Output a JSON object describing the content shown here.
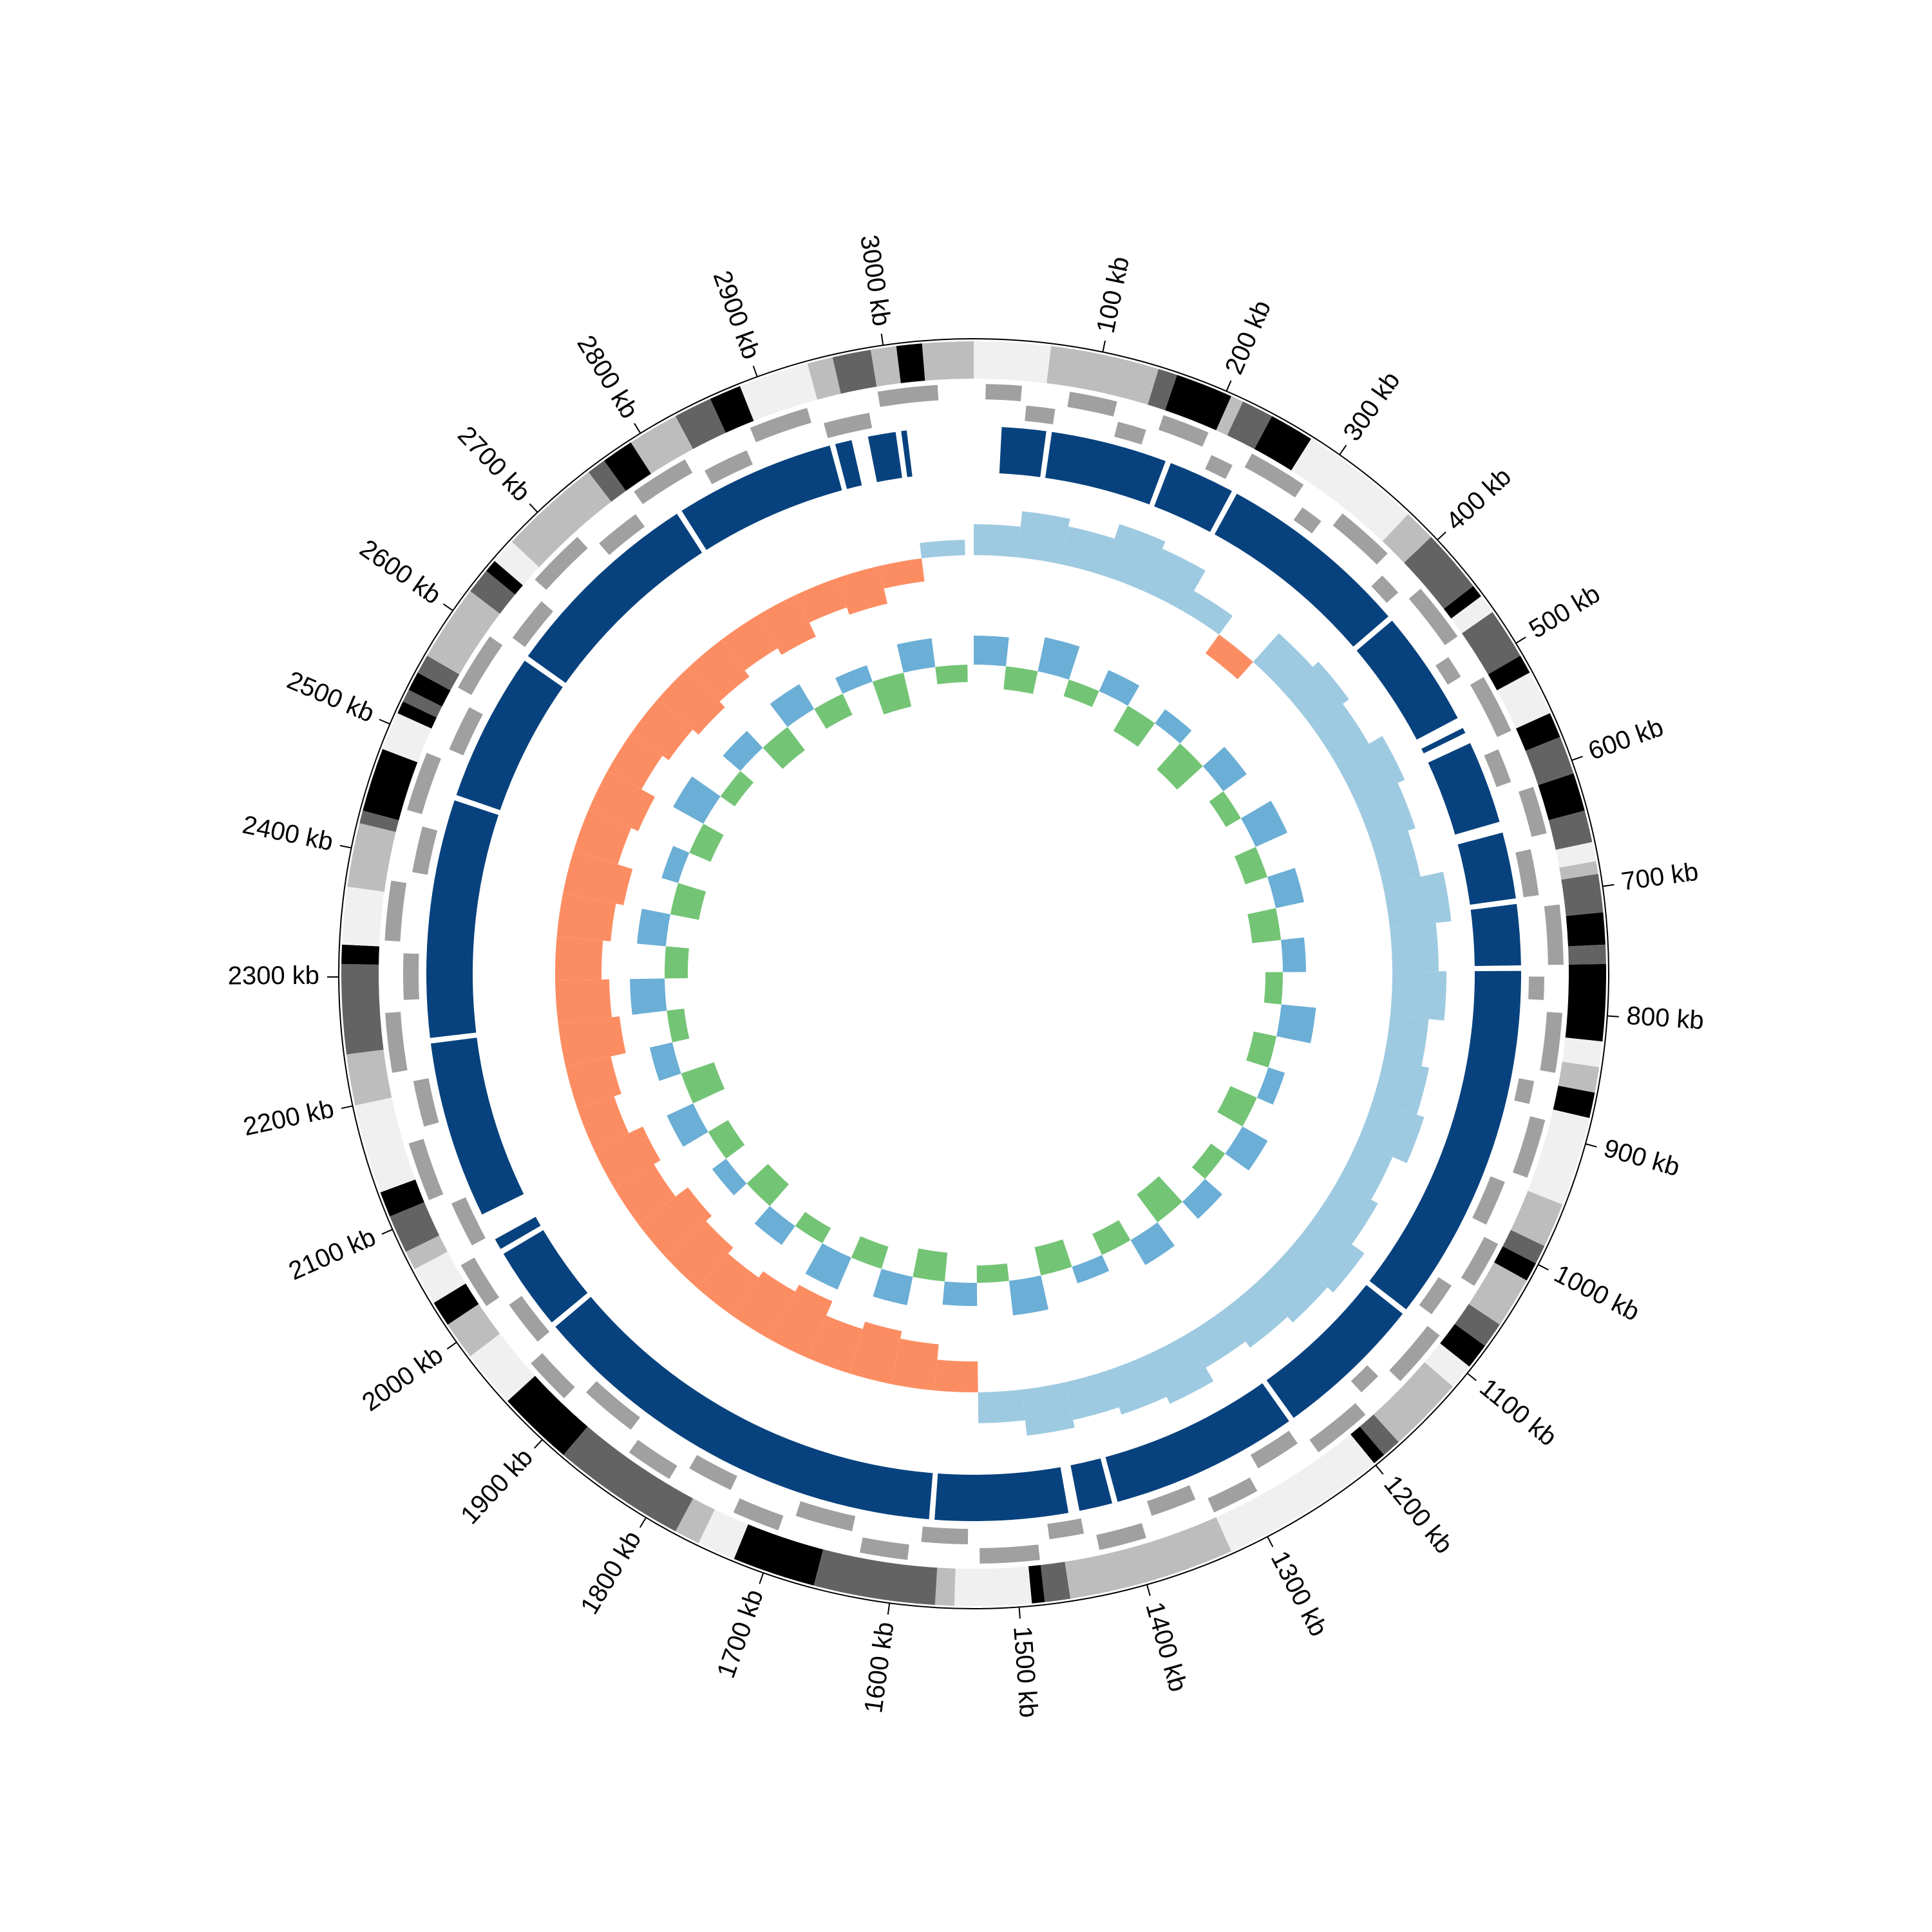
{
  "chart_data": {
    "type": "circos",
    "xlim": [
      0,
      3070
    ],
    "xticks": [
      {
        "value": 100,
        "label": "100 kb"
      },
      {
        "value": 200,
        "label": "200 kb"
      },
      {
        "value": 300,
        "label": "300 kb"
      },
      {
        "value": 400,
        "label": "400 kb"
      },
      {
        "value": 500,
        "label": "500 kb"
      },
      {
        "value": 600,
        "label": "600 kb"
      },
      {
        "value": 700,
        "label": "700 kb"
      },
      {
        "value": 800,
        "label": "800 kb"
      },
      {
        "value": 900,
        "label": "900 kb"
      },
      {
        "value": 1000,
        "label": "1000 kb"
      },
      {
        "value": 1100,
        "label": "1100 kb"
      },
      {
        "value": 1200,
        "label": "1200 kb"
      },
      {
        "value": 1300,
        "label": "1300 kb"
      },
      {
        "value": 1400,
        "label": "1400 kb"
      },
      {
        "value": 1500,
        "label": "1500 kb"
      },
      {
        "value": 1600,
        "label": "1600 kb"
      },
      {
        "value": 1700,
        "label": "1700 kb"
      },
      {
        "value": 1800,
        "label": "1800 kb"
      },
      {
        "value": 1900,
        "label": "1900 kb"
      },
      {
        "value": 2000,
        "label": "2000 kb"
      },
      {
        "value": 2100,
        "label": "2100 kb"
      },
      {
        "value": 2200,
        "label": "2200 kb"
      },
      {
        "value": 2300,
        "label": "2300 kb"
      },
      {
        "value": 2400,
        "label": "2400 kb"
      },
      {
        "value": 2500,
        "label": "2500 kb"
      },
      {
        "value": 2600,
        "label": "2600 kb"
      },
      {
        "value": 2700,
        "label": "2700 kb"
      },
      {
        "value": 2800,
        "label": "2800 kb"
      },
      {
        "value": 2900,
        "label": "2900 kb"
      },
      {
        "value": 3000,
        "label": "3000 kb"
      }
    ],
    "bands": [
      [
        0,
        60,
        "#f0f0f0"
      ],
      [
        60,
        145,
        "#bdbdbd"
      ],
      [
        145,
        160,
        "#636363"
      ],
      [
        160,
        205,
        "#000000"
      ],
      [
        205,
        215,
        "#bdbdbd"
      ],
      [
        215,
        240,
        "#636363"
      ],
      [
        240,
        275,
        "#000000"
      ],
      [
        275,
        370,
        "#f0f0f0"
      ],
      [
        370,
        395,
        "#bdbdbd"
      ],
      [
        395,
        445,
        "#636363"
      ],
      [
        445,
        455,
        "#000000"
      ],
      [
        455,
        470,
        "#f0f0f0"
      ],
      [
        470,
        510,
        "#636363"
      ],
      [
        510,
        525,
        "#000000"
      ],
      [
        525,
        560,
        "#f0f0f0"
      ],
      [
        560,
        580,
        "#000000"
      ],
      [
        580,
        610,
        "#636363"
      ],
      [
        610,
        640,
        "#000000"
      ],
      [
        640,
        665,
        "#636363"
      ],
      [
        665,
        680,
        "#f0f0f0"
      ],
      [
        680,
        690,
        "#bdbdbd"
      ],
      [
        690,
        720,
        "#636363"
      ],
      [
        720,
        745,
        "#000000"
      ],
      [
        745,
        760,
        "#636363"
      ],
      [
        760,
        820,
        "#000000"
      ],
      [
        820,
        840,
        "#f0f0f0"
      ],
      [
        840,
        860,
        "#bdbdbd"
      ],
      [
        860,
        880,
        "#000000"
      ],
      [
        880,
        950,
        "#f0f0f0"
      ],
      [
        950,
        985,
        "#bdbdbd"
      ],
      [
        985,
        1000,
        "#636363"
      ],
      [
        1000,
        1015,
        "#000000"
      ],
      [
        1015,
        1055,
        "#bdbdbd"
      ],
      [
        1055,
        1075,
        "#636363"
      ],
      [
        1075,
        1095,
        "#000000"
      ],
      [
        1095,
        1115,
        "#f0f0f0"
      ],
      [
        1115,
        1175,
        "#bdbdbd"
      ],
      [
        1175,
        1190,
        "#636363"
      ],
      [
        1190,
        1200,
        "#000000"
      ],
      [
        1200,
        1330,
        "#f0f0f0"
      ],
      [
        1330,
        1460,
        "#bdbdbd"
      ],
      [
        1460,
        1480,
        "#636363"
      ],
      [
        1480,
        1490,
        "#000000"
      ],
      [
        1490,
        1550,
        "#f0f0f0"
      ],
      [
        1550,
        1565,
        "#bdbdbd"
      ],
      [
        1565,
        1660,
        "#636363"
      ],
      [
        1660,
        1725,
        "#000000"
      ],
      [
        1725,
        1755,
        "#f0f0f0"
      ],
      [
        1755,
        1775,
        "#bdbdbd"
      ],
      [
        1775,
        1880,
        "#636363"
      ],
      [
        1880,
        1940,
        "#000000"
      ],
      [
        1940,
        1985,
        "#f0f0f0"
      ],
      [
        1985,
        2015,
        "#bdbdbd"
      ],
      [
        2015,
        2035,
        "#000000"
      ],
      [
        2035,
        2065,
        "#f0f0f0"
      ],
      [
        2065,
        2080,
        "#bdbdbd"
      ],
      [
        2080,
        2110,
        "#636363"
      ],
      [
        2110,
        2130,
        "#000000"
      ],
      [
        2130,
        2200,
        "#f0f0f0"
      ],
      [
        2200,
        2240,
        "#bdbdbd"
      ],
      [
        2240,
        2310,
        "#636363"
      ],
      [
        2310,
        2325,
        "#000000"
      ],
      [
        2325,
        2370,
        "#f0f0f0"
      ],
      [
        2370,
        2420,
        "#bdbdbd"
      ],
      [
        2420,
        2430,
        "#636363"
      ],
      [
        2430,
        2480,
        "#000000"
      ],
      [
        2480,
        2510,
        "#f0f0f0"
      ],
      [
        2510,
        2520,
        "#000000"
      ],
      [
        2520,
        2530,
        "#636363"
      ],
      [
        2530,
        2545,
        "#000000"
      ],
      [
        2545,
        2560,
        "#636363"
      ],
      [
        2560,
        2620,
        "#bdbdbd"
      ],
      [
        2620,
        2640,
        "#636363"
      ],
      [
        2640,
        2650,
        "#000000"
      ],
      [
        2650,
        2670,
        "#f0f0f0"
      ],
      [
        2670,
        2750,
        "#bdbdbd"
      ],
      [
        2750,
        2765,
        "#636363"
      ],
      [
        2765,
        2790,
        "#000000"
      ],
      [
        2790,
        2830,
        "#bdbdbd"
      ],
      [
        2830,
        2860,
        "#636363"
      ],
      [
        2860,
        2885,
        "#000000"
      ],
      [
        2885,
        2940,
        "#f0f0f0"
      ],
      [
        2940,
        2960,
        "#bdbdbd"
      ],
      [
        2960,
        2990,
        "#636363"
      ],
      [
        2990,
        3010,
        "#bdbdbd"
      ],
      [
        3010,
        3030,
        "#000000"
      ],
      [
        3030,
        3070,
        "#bdbdbd"
      ]
    ],
    "genes_color": "#a0a0a0",
    "genes": [
      [
        10,
        40,
        1
      ],
      [
        45,
        70,
        -1
      ],
      [
        80,
        120,
        1
      ],
      [
        125,
        150,
        -1
      ],
      [
        160,
        200,
        1
      ],
      [
        210,
        230,
        -1
      ],
      [
        240,
        290,
        1
      ],
      [
        300,
        320,
        -1
      ],
      [
        330,
        380,
        1
      ],
      [
        390,
        410,
        -1
      ],
      [
        420,
        470,
        1
      ],
      [
        480,
        500,
        -1
      ],
      [
        510,
        560,
        1
      ],
      [
        570,
        600,
        -1
      ],
      [
        610,
        650,
        1
      ],
      [
        660,
        700,
        -1
      ],
      [
        710,
        760,
        1
      ],
      [
        770,
        790,
        -1
      ],
      [
        800,
        850,
        1
      ],
      [
        860,
        880,
        -1
      ],
      [
        890,
        940,
        1
      ],
      [
        950,
        990,
        -1
      ],
      [
        1000,
        1040,
        1
      ],
      [
        1050,
        1080,
        -1
      ],
      [
        1090,
        1140,
        1
      ],
      [
        1150,
        1170,
        -1
      ],
      [
        1180,
        1230,
        1
      ],
      [
        1240,
        1280,
        -1
      ],
      [
        1290,
        1330,
        1
      ],
      [
        1340,
        1380,
        -1
      ],
      [
        1390,
        1430,
        1
      ],
      [
        1440,
        1470,
        -1
      ],
      [
        1480,
        1530,
        1
      ],
      [
        1540,
        1580,
        -1
      ],
      [
        1590,
        1630,
        1
      ],
      [
        1640,
        1690,
        -1
      ],
      [
        1700,
        1740,
        1
      ],
      [
        1750,
        1790,
        -1
      ],
      [
        1800,
        1840,
        1
      ],
      [
        1850,
        1900,
        -1
      ],
      [
        1910,
        1950,
        1
      ],
      [
        1960,
        2000,
        -1
      ],
      [
        2010,
        2050,
        1
      ],
      [
        2060,
        2100,
        -1
      ],
      [
        2110,
        2160,
        1
      ],
      [
        2170,
        2210,
        -1
      ],
      [
        2220,
        2270,
        1
      ],
      [
        2280,
        2320,
        -1
      ],
      [
        2330,
        2380,
        1
      ],
      [
        2390,
        2430,
        -1
      ],
      [
        2440,
        2490,
        1
      ],
      [
        2500,
        2540,
        -1
      ],
      [
        2550,
        2600,
        1
      ],
      [
        2610,
        2650,
        -1
      ],
      [
        2660,
        2710,
        1
      ],
      [
        2720,
        2760,
        -1
      ],
      [
        2770,
        2820,
        1
      ],
      [
        2830,
        2870,
        -1
      ],
      [
        2880,
        2930,
        1
      ],
      [
        2940,
        2980,
        -1
      ],
      [
        2990,
        3040,
        1
      ]
    ],
    "blocks_color": "#08427e",
    "blocks": [
      [
        25,
        65
      ],
      [
        70,
        175
      ],
      [
        180,
        240
      ],
      [
        245,
        420
      ],
      [
        425,
        530
      ],
      [
        540,
        545
      ],
      [
        555,
        630
      ],
      [
        640,
        700
      ],
      [
        705,
        760
      ],
      [
        765,
        1090
      ],
      [
        1095,
        1230
      ],
      [
        1235,
        1405
      ],
      [
        1410,
        1440
      ],
      [
        1450,
        1570
      ],
      [
        1575,
        1960
      ],
      [
        1965,
        2040
      ],
      [
        2045,
        2055
      ],
      [
        2080,
        2240
      ],
      [
        2245,
        2460
      ],
      [
        2465,
        2600
      ],
      [
        2605,
        2790
      ],
      [
        2795,
        2940
      ],
      [
        2945,
        2960
      ],
      [
        2975,
        3000
      ],
      [
        3005,
        3010
      ]
    ],
    "skew": {
      "positive_color": "#9ecae1",
      "negative_color": "#fc8d62",
      "x": [
        0,
        51,
        102,
        153,
        204,
        255,
        306,
        357,
        408,
        459,
        510,
        561,
        612,
        663,
        714,
        765,
        816,
        867,
        918,
        969,
        1020,
        1071,
        1122,
        1173,
        1224,
        1275,
        1326,
        1377,
        1428,
        1479,
        1530,
        1581,
        1632,
        1683,
        1734,
        1785,
        1836,
        1887,
        1938,
        1989,
        2040,
        2091,
        2142,
        2193,
        2244,
        2295,
        2346,
        2397,
        2448,
        2499,
        2550,
        2601,
        2652,
        2703,
        2754,
        2805,
        2856,
        2907,
        2958,
        3009
      ],
      "values": [
        0.4,
        0.6,
        0.5,
        0.7,
        0.6,
        0.3,
        -0.3,
        0.5,
        0.6,
        0.5,
        0.7,
        0.6,
        0.5,
        0.8,
        0.6,
        0.7,
        0.5,
        0.6,
        0.7,
        0.5,
        0.6,
        0.8,
        0.7,
        0.6,
        0.5,
        0.7,
        0.6,
        0.5,
        0.6,
        0.4,
        -0.4,
        -0.6,
        -0.7,
        -0.6,
        -0.8,
        -0.7,
        -0.6,
        -0.7,
        -0.8,
        -0.6,
        -0.7,
        -0.5,
        -0.6,
        -0.8,
        -0.7,
        -0.6,
        -0.7,
        -0.8,
        -0.6,
        -0.7,
        -0.5,
        -0.6,
        -0.7,
        -0.6,
        -0.5,
        -0.6,
        -0.4,
        -0.5,
        -0.3,
        0.2
      ]
    },
    "gc": {
      "positive_color": "#6baed6",
      "negative_color": "#74c476",
      "x": [
        0,
        51,
        102,
        153,
        204,
        255,
        306,
        357,
        408,
        459,
        510,
        561,
        612,
        663,
        714,
        765,
        816,
        867,
        918,
        969,
        1020,
        1071,
        1122,
        1173,
        1224,
        1275,
        1326,
        1377,
        1428,
        1479,
        1530,
        1581,
        1632,
        1683,
        1734,
        1785,
        1836,
        1887,
        1938,
        1989,
        2040,
        2091,
        2142,
        2193,
        2244,
        2295,
        2346,
        2397,
        2448,
        2499,
        2550,
        2601,
        2652,
        2703,
        2754,
        2805,
        2856,
        2907,
        2958,
        3009
      ],
      "values": [
        0.5,
        -0.4,
        0.6,
        -0.3,
        0.4,
        -0.5,
        0.3,
        -0.6,
        0.5,
        -0.3,
        0.6,
        -0.4,
        0.5,
        -0.5,
        0.4,
        -0.3,
        0.6,
        -0.4,
        0.3,
        -0.5,
        0.5,
        -0.3,
        0.4,
        -0.6,
        0.5,
        -0.4,
        0.3,
        -0.5,
        0.6,
        -0.3,
        0.4,
        -0.5,
        0.5,
        -0.4,
        0.6,
        -0.3,
        0.4,
        -0.5,
        0.3,
        -0.4,
        0.5,
        -0.6,
        0.4,
        -0.3,
        0.6,
        -0.4,
        0.5,
        -0.5,
        0.3,
        -0.4,
        0.6,
        -0.3,
        0.4,
        -0.5,
        0.5,
        -0.4,
        0.3,
        -0.6,
        0.5,
        -0.3
      ]
    }
  }
}
